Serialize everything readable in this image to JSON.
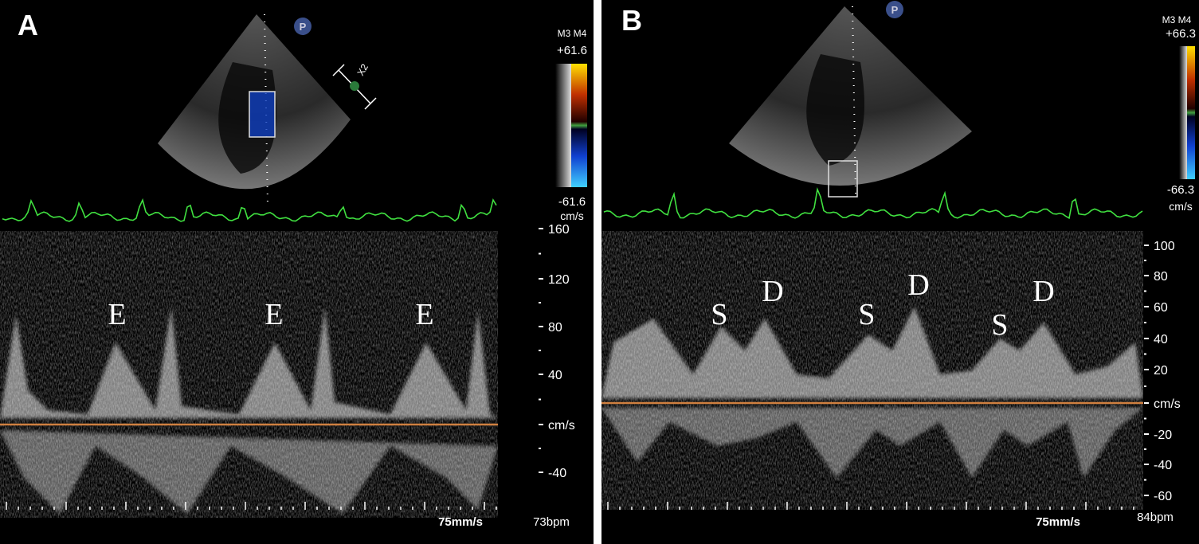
{
  "panels": [
    {
      "label": "A",
      "probe_marker": "P",
      "zoom": "X2",
      "scale_header": "M3 M4",
      "scale_max": "+61.6",
      "scale_min": "-61.6",
      "scale_unit": "cm/s",
      "velocity_ticks": [
        "160",
        "120",
        "80",
        "40",
        "cm/s",
        "-40"
      ],
      "wave_labels": [
        "E",
        "E",
        "E"
      ],
      "sweep": "75mm/s",
      "heart_rate": "73bpm"
    },
    {
      "label": "B",
      "probe_marker": "P",
      "scale_header": "M3 M4",
      "scale_max": "+66.3",
      "scale_min": "-66.3",
      "scale_unit": "cm/s",
      "velocity_ticks": [
        "100",
        "80",
        "60",
        "40",
        "20",
        "cm/s",
        "-20",
        "-40",
        "-60"
      ],
      "wave_labels": [
        "S",
        "D",
        "S",
        "D",
        "S",
        "D"
      ],
      "sweep": "75mm/s",
      "heart_rate": "84bpm"
    }
  ]
}
